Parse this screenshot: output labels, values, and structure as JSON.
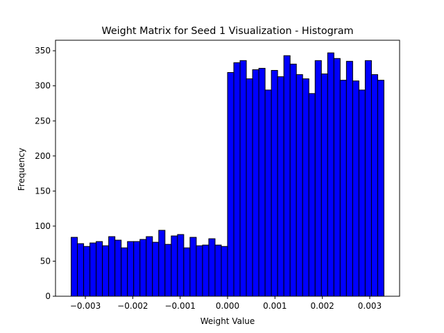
{
  "chart_data": {
    "type": "bar",
    "title": "Weight Matrix for Seed 1 Visualization - Histogram",
    "xlabel": "Weight Value",
    "ylabel": "Frequency",
    "xlim": [
      -0.00363,
      0.00363
    ],
    "ylim": [
      0,
      365
    ],
    "bin_start": -0.0033,
    "bin_width": 0.000132,
    "values": [
      84,
      75,
      71,
      76,
      78,
      72,
      85,
      80,
      69,
      78,
      78,
      81,
      85,
      77,
      94,
      74,
      86,
      88,
      69,
      84,
      72,
      73,
      82,
      73,
      71,
      319,
      333,
      336,
      310,
      323,
      325,
      294,
      322,
      313,
      343,
      331,
      316,
      310,
      289,
      336,
      317,
      347,
      339,
      308,
      335,
      307,
      294,
      336,
      316,
      308
    ],
    "xticks": [
      -0.003,
      -0.002,
      -0.001,
      0.0,
      0.001,
      0.002,
      0.003
    ],
    "xtick_labels": [
      "−0.003",
      "−0.002",
      "−0.001",
      "0.000",
      "0.001",
      "0.002",
      "0.003"
    ],
    "yticks": [
      0,
      50,
      100,
      150,
      200,
      250,
      300,
      350
    ],
    "ytick_labels": [
      "0",
      "50",
      "100",
      "150",
      "200",
      "250",
      "300",
      "350"
    ],
    "bar_color": "#0000ff",
    "edge_color": "#000000",
    "grid": false
  }
}
